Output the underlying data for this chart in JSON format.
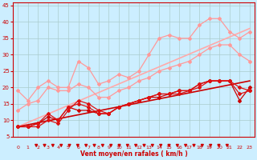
{
  "background_color": "#cceeff",
  "grid_color": "#aacccc",
  "xlabel": "Vent moyen/en rafales ( km/h )",
  "xlabel_color": "#cc0000",
  "tick_color": "#cc0000",
  "x_ticks": [
    0,
    1,
    2,
    3,
    4,
    5,
    6,
    7,
    8,
    9,
    10,
    11,
    12,
    13,
    14,
    15,
    16,
    17,
    18,
    19,
    20,
    21,
    22,
    23
  ],
  "y_ticks": [
    5,
    10,
    15,
    20,
    25,
    30,
    35,
    40,
    45
  ],
  "xlim": [
    0,
    23
  ],
  "ylim": [
    5,
    46
  ],
  "lines": [
    {
      "x": [
        0,
        1,
        2,
        3,
        4,
        5,
        6,
        7,
        8,
        9,
        10,
        11,
        12,
        13,
        14,
        15,
        16,
        17,
        18,
        19,
        20,
        21,
        22,
        23
      ],
      "y": [
        8,
        8,
        8,
        10,
        9,
        13,
        16,
        15,
        13,
        12,
        14,
        15,
        16,
        17,
        18,
        18,
        19,
        19,
        20,
        22,
        22,
        22,
        20,
        19
      ],
      "color": "#dd1111",
      "linewidth": 0.9,
      "marker": "D",
      "markersize": 2.0,
      "zorder": 5
    },
    {
      "x": [
        0,
        1,
        2,
        3,
        4,
        5,
        6,
        7,
        8,
        9,
        10,
        11,
        12,
        13,
        14,
        15,
        16,
        17,
        18,
        19,
        20,
        21,
        22,
        23
      ],
      "y": [
        8,
        8,
        9,
        12,
        10,
        14,
        15,
        14,
        12,
        12,
        14,
        15,
        16,
        17,
        18,
        18,
        18,
        19,
        21,
        22,
        22,
        22,
        18,
        19
      ],
      "color": "#dd1111",
      "linewidth": 0.9,
      "marker": "D",
      "markersize": 2.0,
      "zorder": 5
    },
    {
      "x": [
        0,
        1,
        2,
        3,
        4,
        5,
        6,
        7,
        8,
        9,
        10,
        11,
        12,
        13,
        14,
        15,
        16,
        17,
        18,
        19,
        20,
        21,
        22,
        23
      ],
      "y": [
        8,
        8,
        9,
        11,
        10,
        14,
        13,
        13,
        12,
        12,
        14,
        15,
        16,
        17,
        17,
        18,
        19,
        19,
        21,
        22,
        22,
        22,
        16,
        20
      ],
      "color": "#cc0000",
      "linewidth": 0.9,
      "marker": "D",
      "markersize": 2.0,
      "zorder": 4
    },
    {
      "x": [
        0,
        1,
        2,
        3,
        4,
        5,
        6,
        7,
        8,
        9,
        10,
        11,
        12,
        13,
        14,
        15,
        16,
        17,
        18,
        19,
        20,
        21,
        22,
        23
      ],
      "y": [
        19,
        16,
        20,
        22,
        20,
        20,
        28,
        26,
        21,
        22,
        24,
        23,
        25,
        30,
        35,
        36,
        35,
        35,
        39,
        41,
        41,
        37,
        35,
        37
      ],
      "color": "#ff9999",
      "linewidth": 0.9,
      "marker": "D",
      "markersize": 2.0,
      "zorder": 3
    },
    {
      "x": [
        0,
        1,
        2,
        3,
        4,
        5,
        6,
        7,
        8,
        9,
        10,
        11,
        12,
        13,
        14,
        15,
        16,
        17,
        18,
        19,
        20,
        21,
        22,
        23
      ],
      "y": [
        13,
        15,
        16,
        20,
        19,
        19,
        21,
        20,
        17,
        17,
        19,
        20,
        22,
        23,
        25,
        26,
        27,
        28,
        30,
        32,
        33,
        33,
        30,
        28
      ],
      "color": "#ff9999",
      "linewidth": 0.9,
      "marker": "D",
      "markersize": 2.0,
      "zorder": 3
    },
    {
      "x": [
        0,
        23
      ],
      "y": [
        8,
        38
      ],
      "color": "#ffaaaa",
      "linewidth": 1.2,
      "marker": "None",
      "markersize": 0,
      "zorder": 2
    },
    {
      "x": [
        0,
        23
      ],
      "y": [
        8,
        22
      ],
      "color": "#cc0000",
      "linewidth": 1.2,
      "marker": "None",
      "markersize": 0,
      "zorder": 2
    }
  ]
}
